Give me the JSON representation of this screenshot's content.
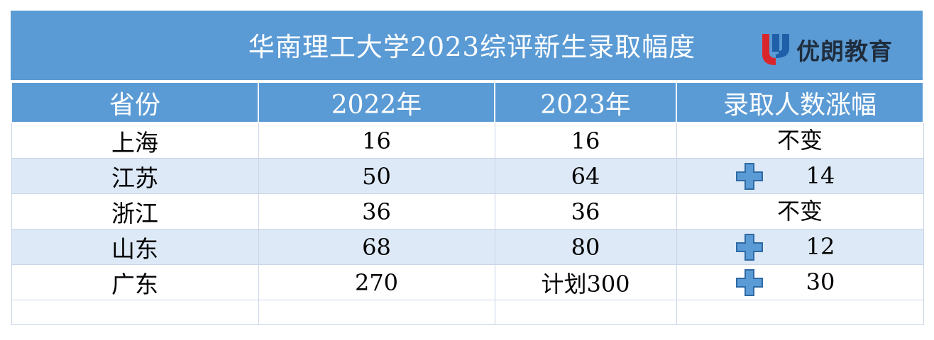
{
  "title": "华南理工大学2023综评新生录取幅度",
  "logo": {
    "text": "优朗教育",
    "icon": "youlang-logo-icon"
  },
  "columns": [
    "省份",
    "2022年",
    "2023年",
    "录取人数涨幅"
  ],
  "rows": [
    {
      "province": "上海",
      "y2022": "16",
      "y2023": "16",
      "change": "不变",
      "change_icon": ""
    },
    {
      "province": "江苏",
      "y2022": "50",
      "y2023": "64",
      "change": "14",
      "change_icon": "plus-icon"
    },
    {
      "province": "浙江",
      "y2022": "36",
      "y2023": "36",
      "change": "不变",
      "change_icon": ""
    },
    {
      "province": "山东",
      "y2022": "68",
      "y2023": "80",
      "change": "12",
      "change_icon": "plus-icon"
    },
    {
      "province": "广东",
      "y2022": "270",
      "y2023": "计划300",
      "change": "30",
      "change_icon": "plus-icon"
    }
  ],
  "colors": {
    "header_bg": "#5b9bd5",
    "alt_row_bg": "#dde9f6",
    "header_text": "#ffffff"
  }
}
